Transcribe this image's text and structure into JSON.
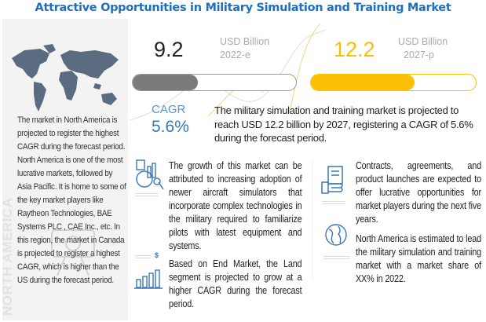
{
  "title": "Attractive Opportunities in Military Simulation and Training Market",
  "left_panel": {
    "text": "The market in North America is projected to register the highest CAGR during the forecast period. North America is one of the most lucrative markets, followed by  Asia Pacific. It is home to some of the key market players like Raytheon Technologies, BAE Systems PLC , CAE Inc., etc. In this region, the market in Canada is projected to register a highest CAGR, which is higher than the US during the forecast period.",
    "vertical_label": "NORTH AMERICA"
  },
  "metrics": {
    "start": {
      "value": "9.2",
      "unit": "USD Billion",
      "year": "2022-e",
      "fill_percent": 40,
      "color": "#7a7a7a"
    },
    "end": {
      "value": "12.2",
      "unit": "USD Billion",
      "year": "2027-p",
      "fill_percent": 63,
      "color": "#fbbf05"
    },
    "cagr_label": "CAGR",
    "cagr_value": "5.6%",
    "summary": "The military simulation and training market is projected to reach USD 12.2 billion by 2027, registering a CAGR of 5.6% during the forecast period."
  },
  "insights": [
    {
      "icon": "analytics-icon",
      "text": "The growth of this market can be attributed to increasing adoption of newer aircraft simulators that incorporate complex technologies in the military required to familiarize pilots with latest equipment and systems."
    },
    {
      "icon": "bar-chart-icon",
      "text": "Based on End Market, the Land segment is projected to grow at a higher CAGR during the forecast period."
    },
    {
      "icon": "contract-icon",
      "text": "Contracts, agreements, and product launches are expected to offer lucrative opportunities for market players during the next five years."
    },
    {
      "icon": "globe-icon",
      "text": "North America is estimated to lead the military simulation and training market with a market share of XX% in 2022."
    }
  ],
  "dollar_sign": "$"
}
